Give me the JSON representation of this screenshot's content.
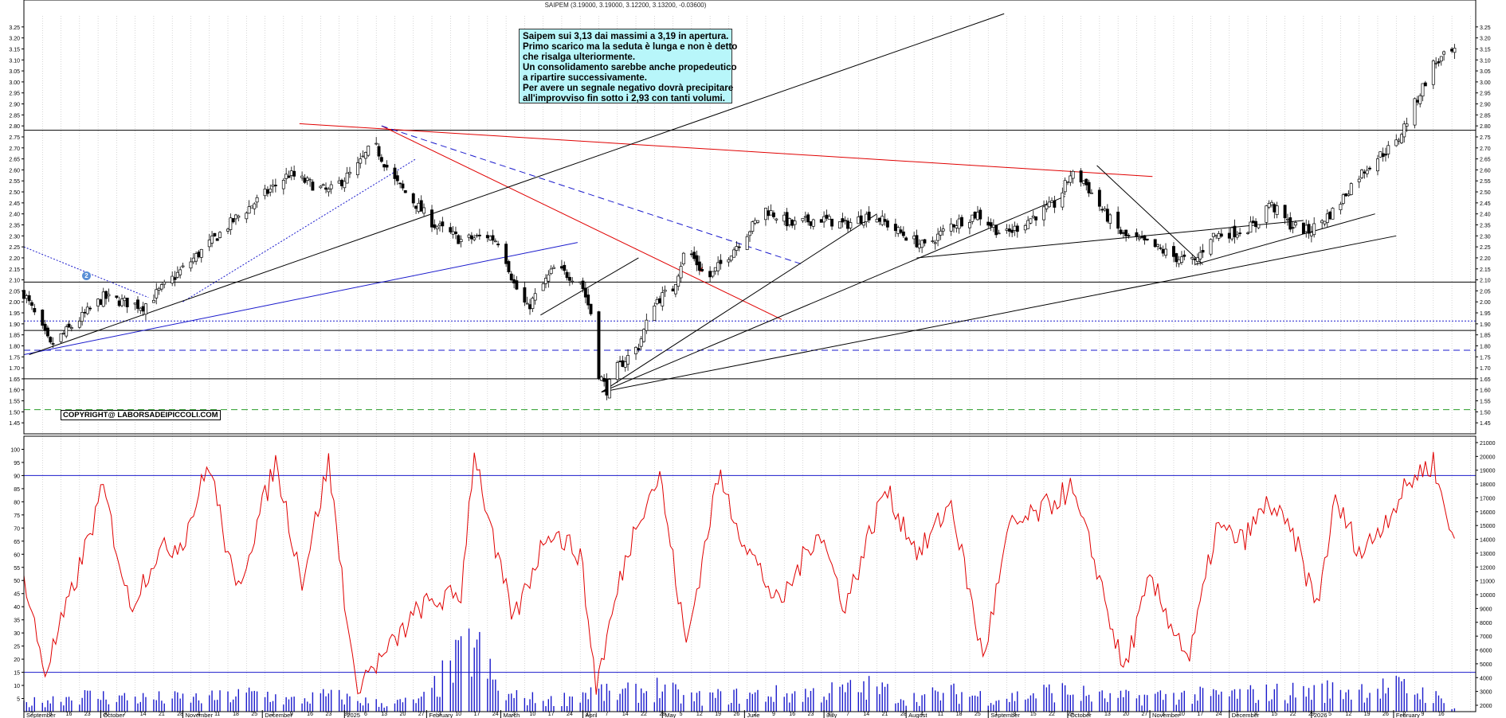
{
  "header": {
    "title": "SAIPEM (3.19000, 3.19000, 3.12200, 3.13200, -0.03600)"
  },
  "note": {
    "lines": [
      "Saipem sui 3,13 dai massimi a 3,19 in apertura.",
      "Primo scarico ma la seduta è lunga e non è detto",
      "che risalga ulteriormente.",
      "Un consolidamento sarebbe anche propedeutico",
      "a ripartire successivamente.",
      "Per avere un segnale negativo dovrà precipitare",
      "all'improvviso fin sotto i 2,93 con tanti volumi."
    ]
  },
  "copyright": "COPYRIGHT@ LABORSADEIPICCOLI.COM",
  "marker_label": "2",
  "colors": {
    "red": "#e00000",
    "blue": "#1a1acc",
    "green": "#2a9d2a",
    "black": "#000000",
    "note_bg": "#b8f6fa"
  },
  "chart_data": [
    {
      "type": "candlestick",
      "ylim": [
        1.4,
        3.3
      ],
      "yticks": [
        "1.45",
        "1.50",
        "1.55",
        "1.60",
        "1.65",
        "1.70",
        "1.75",
        "1.80",
        "1.85",
        "1.90",
        "1.95",
        "2.00",
        "2.05",
        "2.10",
        "2.15",
        "2.20",
        "2.25",
        "2.30",
        "2.35",
        "2.40",
        "2.45",
        "2.50",
        "2.55",
        "2.60",
        "2.65",
        "2.70",
        "2.75",
        "2.80",
        "2.85",
        "2.90",
        "2.95",
        "3.00",
        "3.05",
        "3.10",
        "3.15",
        "3.20",
        "3.25"
      ],
      "months": [
        {
          "label": "September",
          "day": 0
        },
        {
          "label": "October",
          "day": 29
        },
        {
          "label": "November",
          "day": 60
        },
        {
          "label": "December",
          "day": 90
        },
        {
          "label": "2025",
          "day": 121
        },
        {
          "label": "February",
          "day": 152
        },
        {
          "label": "March",
          "day": 180
        },
        {
          "label": "April",
          "day": 211
        },
        {
          "label": "May",
          "day": 241
        },
        {
          "label": "June",
          "day": 272
        },
        {
          "label": "July",
          "day": 302
        },
        {
          "label": "August",
          "day": 333
        },
        {
          "label": "September",
          "day": 364
        },
        {
          "label": "October",
          "day": 394
        },
        {
          "label": "November",
          "day": 425
        },
        {
          "label": "December",
          "day": 455
        },
        {
          "label": "2026",
          "day": 486
        },
        {
          "label": "February",
          "day": 517
        }
      ],
      "day_labels": [
        "2",
        "9",
        "16",
        "23",
        "30",
        "7",
        "14",
        "21",
        "28",
        "4",
        "11",
        "18",
        "25",
        "2",
        "9",
        "16",
        "23",
        "30",
        "6",
        "13",
        "20",
        "27",
        "3",
        "10",
        "17",
        "24",
        "3",
        "10",
        "17",
        "24",
        "31",
        "7",
        "14",
        "22",
        "28",
        "5",
        "12",
        "19",
        "26",
        "2",
        "9",
        "16",
        "23",
        "30",
        "7",
        "14",
        "21",
        "28",
        "4",
        "11",
        "18",
        "25",
        "1",
        "8",
        "15",
        "22",
        "29",
        "6",
        "13",
        "20",
        "27",
        "3",
        "10",
        "17",
        "24",
        "1",
        "8",
        "15",
        "22",
        "29",
        "5",
        "12",
        "19",
        "26",
        "2",
        "9",
        "16"
      ],
      "hlines": [
        {
          "y": 2.78,
          "color": "#000000",
          "style": "solid"
        },
        {
          "y": 2.09,
          "color": "#000000",
          "style": "solid"
        },
        {
          "y": 1.913,
          "color": "#1a1acc",
          "style": "dotted"
        },
        {
          "y": 1.87,
          "color": "#000000",
          "style": "solid"
        },
        {
          "y": 1.78,
          "color": "#1a1acc",
          "style": "dashed"
        },
        {
          "y": 1.65,
          "color": "#000000",
          "style": "solid"
        },
        {
          "y": 1.51,
          "color": "#2a9d2a",
          "style": "dashed"
        }
      ],
      "trendlines": [
        {
          "from": [
            104,
            2.81
          ],
          "to": [
            426,
            2.57
          ],
          "color": "#e00000",
          "style": "solid"
        },
        {
          "from": [
            135,
            2.8
          ],
          "to": [
            286,
            1.92
          ],
          "color": "#e00000",
          "style": "solid"
        },
        {
          "from": [
            135,
            2.8
          ],
          "to": [
            294,
            2.17
          ],
          "color": "#1a1acc",
          "style": "dashed"
        },
        {
          "from": [
            0,
            1.76
          ],
          "to": [
            209,
            2.27
          ],
          "color": "#1a1acc",
          "style": "solid"
        },
        {
          "from": [
            0,
            2.25
          ],
          "to": [
            47,
            2.02
          ],
          "color": "#1a1acc",
          "style": "dotted"
        },
        {
          "from": [
            60,
            2.0
          ],
          "to": [
            148,
            2.65
          ],
          "color": "#1a1acc",
          "style": "dotted"
        },
        {
          "from": [
            2,
            1.76
          ],
          "to": [
            370,
            3.31
          ],
          "color": "#000000",
          "style": "solid"
        },
        {
          "from": [
            218,
            1.59
          ],
          "to": [
            322,
            2.4
          ],
          "color": "#000000",
          "style": "solid"
        },
        {
          "from": [
            218,
            1.59
          ],
          "to": [
            393,
            2.48
          ],
          "color": "#000000",
          "style": "solid"
        },
        {
          "from": [
            218,
            1.59
          ],
          "to": [
            518,
            2.3
          ],
          "color": "#000000",
          "style": "solid"
        },
        {
          "from": [
            195,
            1.94
          ],
          "to": [
            232,
            2.2
          ],
          "color": "#000000",
          "style": "solid"
        },
        {
          "from": [
            337,
            2.2
          ],
          "to": [
            483,
            2.37
          ],
          "color": "#000000",
          "style": "solid"
        },
        {
          "from": [
            405,
            2.62
          ],
          "to": [
            445,
            2.17
          ],
          "color": "#000000",
          "style": "solid"
        },
        {
          "from": [
            442,
            2.17
          ],
          "to": [
            510,
            2.4
          ],
          "color": "#000000",
          "style": "solid"
        }
      ],
      "close_anchors": [
        [
          0,
          2.04
        ],
        [
          10,
          1.8
        ],
        [
          30,
          2.02
        ],
        [
          45,
          1.98
        ],
        [
          60,
          2.15
        ],
        [
          80,
          2.38
        ],
        [
          100,
          2.58
        ],
        [
          115,
          2.5
        ],
        [
          125,
          2.6
        ],
        [
          132,
          2.72
        ],
        [
          140,
          2.55
        ],
        [
          155,
          2.35
        ],
        [
          165,
          2.28
        ],
        [
          175,
          2.3
        ],
        [
          180,
          2.27
        ],
        [
          185,
          2.08
        ],
        [
          190,
          1.97
        ],
        [
          200,
          2.15
        ],
        [
          210,
          2.1
        ],
        [
          214,
          1.95
        ],
        [
          216,
          1.7
        ],
        [
          220,
          1.6
        ],
        [
          224,
          1.7
        ],
        [
          232,
          1.8
        ],
        [
          238,
          2.0
        ],
        [
          245,
          2.06
        ],
        [
          250,
          2.25
        ],
        [
          258,
          2.1
        ],
        [
          265,
          2.2
        ],
        [
          272,
          2.3
        ],
        [
          280,
          2.42
        ],
        [
          290,
          2.35
        ],
        [
          300,
          2.38
        ],
        [
          310,
          2.35
        ],
        [
          320,
          2.4
        ],
        [
          330,
          2.32
        ],
        [
          340,
          2.25
        ],
        [
          350,
          2.35
        ],
        [
          360,
          2.4
        ],
        [
          370,
          2.3
        ],
        [
          380,
          2.38
        ],
        [
          390,
          2.45
        ],
        [
          395,
          2.58
        ],
        [
          400,
          2.55
        ],
        [
          408,
          2.4
        ],
        [
          415,
          2.3
        ],
        [
          425,
          2.26
        ],
        [
          435,
          2.2
        ],
        [
          442,
          2.18
        ],
        [
          448,
          2.3
        ],
        [
          458,
          2.32
        ],
        [
          465,
          2.35
        ],
        [
          470,
          2.45
        ],
        [
          478,
          2.35
        ],
        [
          485,
          2.32
        ],
        [
          495,
          2.42
        ],
        [
          502,
          2.55
        ],
        [
          510,
          2.65
        ],
        [
          518,
          2.72
        ],
        [
          525,
          2.9
        ],
        [
          532,
          3.08
        ],
        [
          538,
          3.13
        ]
      ]
    },
    {
      "type": "line+bar",
      "ylim": [
        0,
        105
      ],
      "yticks": [
        "5",
        "10",
        "15",
        "20",
        "25",
        "30",
        "35",
        "40",
        "45",
        "50",
        "55",
        "60",
        "65",
        "70",
        "75",
        "80",
        "85",
        "90",
        "95",
        "100"
      ],
      "volume_ticks": [
        "2000",
        "3000",
        "4000",
        "5000",
        "6000",
        "7000",
        "8000",
        "9000",
        "10000",
        "11000",
        "12000",
        "13000",
        "14000",
        "15000",
        "16000",
        "17000",
        "18000",
        "19000",
        "20000",
        "21000"
      ],
      "hlines": [
        90,
        15
      ],
      "line_anchors": [
        [
          0,
          50
        ],
        [
          8,
          15
        ],
        [
          18,
          45
        ],
        [
          30,
          85
        ],
        [
          40,
          40
        ],
        [
          50,
          60
        ],
        [
          60,
          65
        ],
        [
          70,
          95
        ],
        [
          80,
          45
        ],
        [
          95,
          95
        ],
        [
          105,
          50
        ],
        [
          115,
          95
        ],
        [
          125,
          10
        ],
        [
          135,
          20
        ],
        [
          150,
          40
        ],
        [
          165,
          45
        ],
        [
          170,
          100
        ],
        [
          178,
          60
        ],
        [
          185,
          35
        ],
        [
          198,
          70
        ],
        [
          210,
          60
        ],
        [
          216,
          10
        ],
        [
          225,
          50
        ],
        [
          232,
          75
        ],
        [
          240,
          90
        ],
        [
          250,
          25
        ],
        [
          262,
          90
        ],
        [
          272,
          65
        ],
        [
          285,
          40
        ],
        [
          300,
          70
        ],
        [
          310,
          40
        ],
        [
          325,
          85
        ],
        [
          338,
          60
        ],
        [
          350,
          80
        ],
        [
          362,
          20
        ],
        [
          372,
          70
        ],
        [
          382,
          75
        ],
        [
          395,
          85
        ],
        [
          405,
          55
        ],
        [
          415,
          15
        ],
        [
          425,
          50
        ],
        [
          440,
          20
        ],
        [
          450,
          70
        ],
        [
          460,
          65
        ],
        [
          470,
          80
        ],
        [
          480,
          65
        ],
        [
          488,
          40
        ],
        [
          495,
          80
        ],
        [
          505,
          60
        ],
        [
          515,
          75
        ],
        [
          525,
          90
        ],
        [
          532,
          95
        ],
        [
          538,
          70
        ]
      ],
      "volume_anchors": [
        [
          0,
          3
        ],
        [
          20,
          6
        ],
        [
          45,
          5
        ],
        [
          70,
          5
        ],
        [
          90,
          7
        ],
        [
          100,
          4
        ],
        [
          115,
          6
        ],
        [
          135,
          3
        ],
        [
          150,
          4
        ],
        [
          170,
          25
        ],
        [
          180,
          6
        ],
        [
          200,
          4
        ],
        [
          216,
          8
        ],
        [
          222,
          6
        ],
        [
          240,
          9
        ],
        [
          250,
          5
        ],
        [
          270,
          6
        ],
        [
          300,
          7
        ],
        [
          320,
          9
        ],
        [
          335,
          5
        ],
        [
          350,
          7
        ],
        [
          370,
          5
        ],
        [
          390,
          8
        ],
        [
          410,
          5
        ],
        [
          430,
          6
        ],
        [
          445,
          6
        ],
        [
          470,
          7
        ],
        [
          495,
          8
        ],
        [
          520,
          9
        ],
        [
          532,
          6
        ],
        [
          538,
          2
        ]
      ]
    }
  ]
}
